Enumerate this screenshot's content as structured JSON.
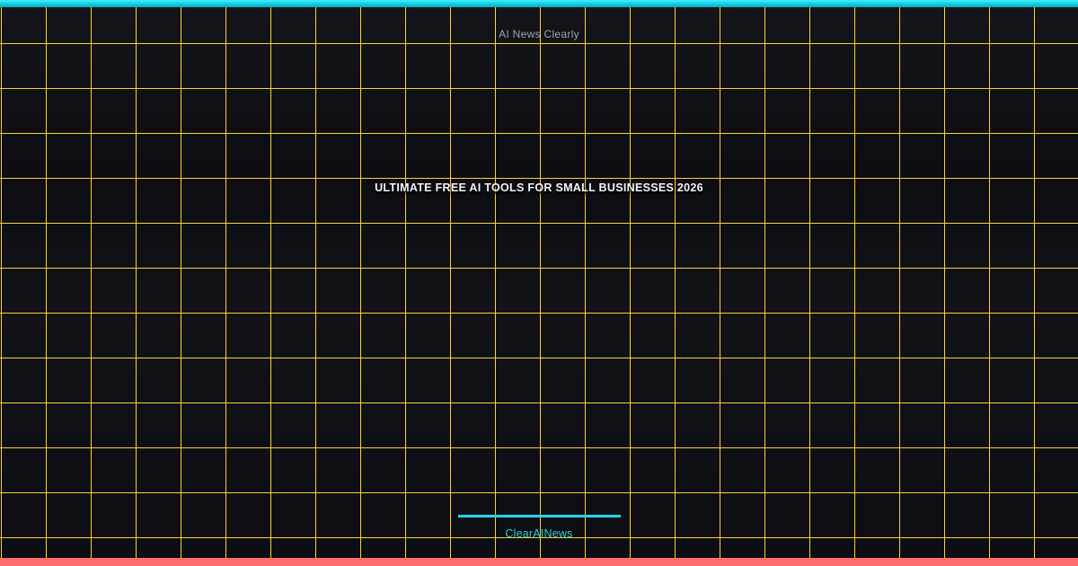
{
  "header": {
    "site_name": "AI News Clearly"
  },
  "main": {
    "title": "ULTIMATE FREE AI TOOLS FOR SMALL BUSINESSES 2026"
  },
  "footer": {
    "brand": "ClearAINews"
  },
  "colors": {
    "background": "#0d0d14",
    "grid_gold": "#ffd02e",
    "accent_cyan_bar": "#18d7e8",
    "accent_coral_bar": "#ff6e6e",
    "divider_cyan": "#1ad8e9",
    "site_name_text": "#a3a3ae",
    "title_text": "#f5f5f7",
    "brand_text": "#29cfdf"
  }
}
